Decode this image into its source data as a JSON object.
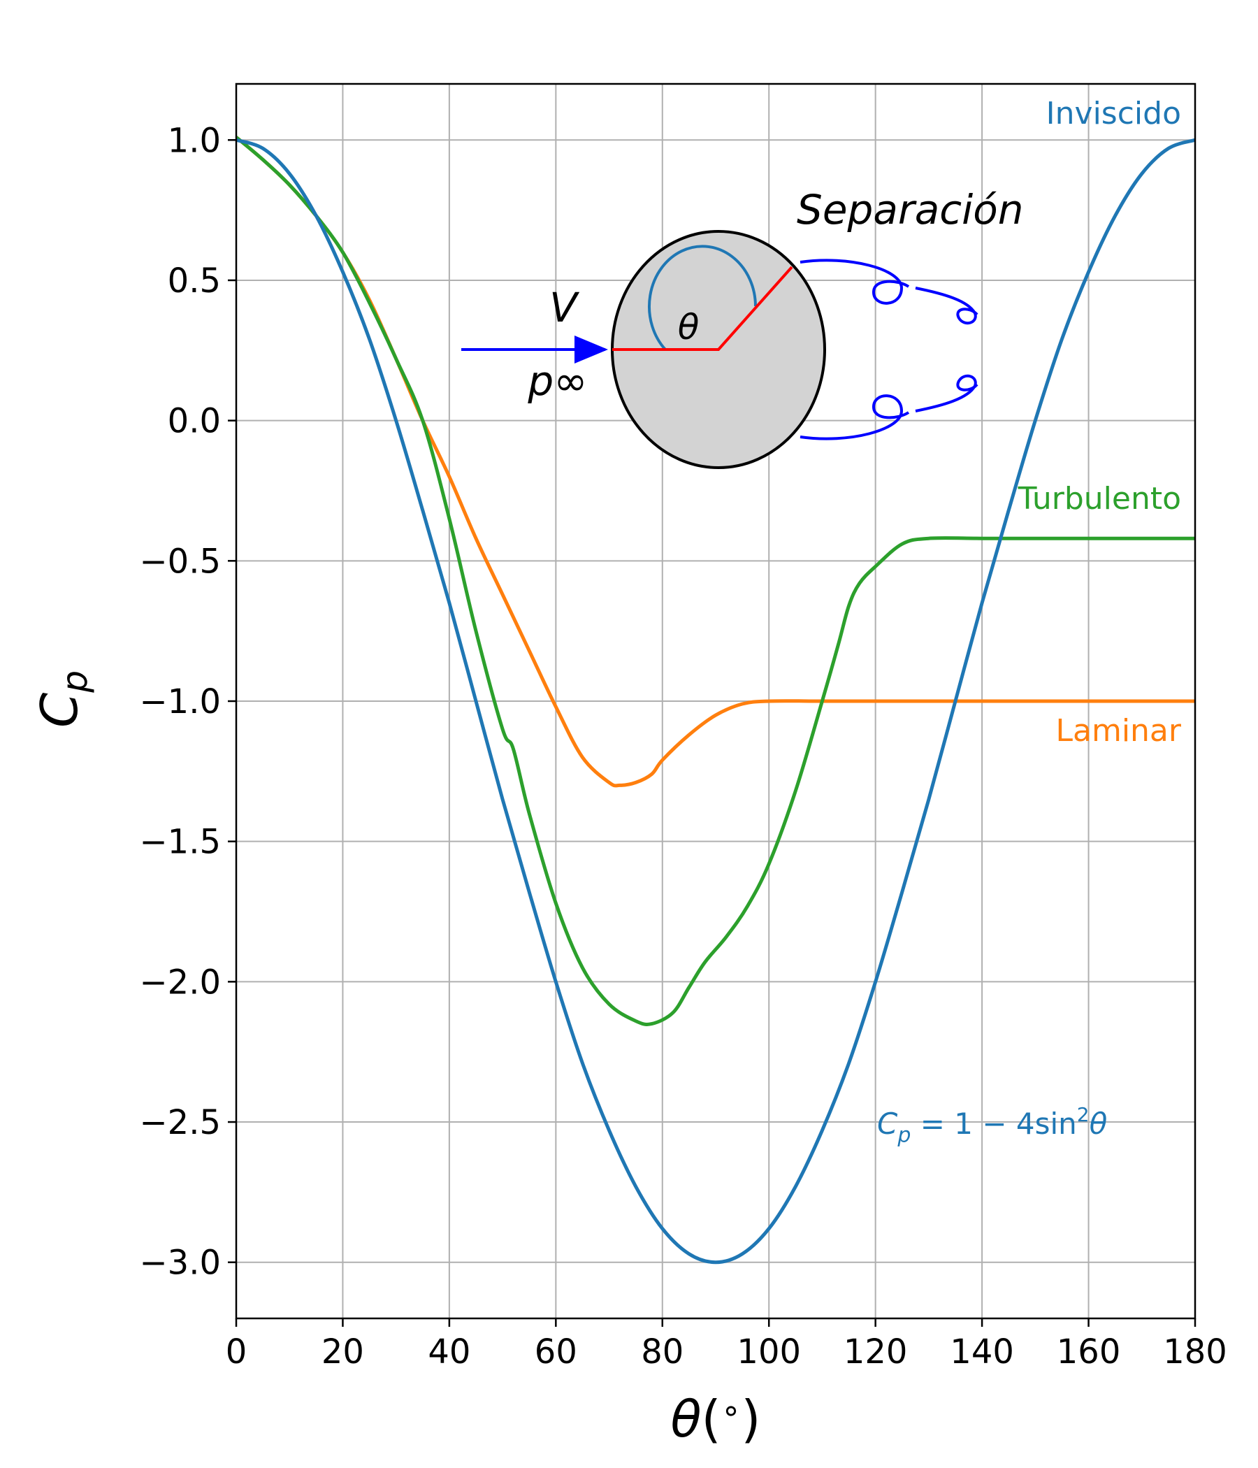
{
  "chart_data": {
    "type": "line",
    "xlabel": "θ(°)",
    "ylabel": "Cp",
    "xlim": [
      0,
      180
    ],
    "ylim": [
      -3.2,
      1.2
    ],
    "grid": true,
    "x_ticks": [
      0,
      20,
      40,
      60,
      80,
      100,
      120,
      140,
      160,
      180
    ],
    "y_ticks": [
      1.0,
      0.5,
      0.0,
      -0.5,
      -1.0,
      -1.5,
      -2.0,
      -2.5,
      -3.0
    ],
    "x_tick_labels": [
      "0",
      "20",
      "40",
      "60",
      "80",
      "100",
      "120",
      "140",
      "160",
      "180"
    ],
    "y_tick_labels": [
      "1.0",
      "0.5",
      "0.0",
      "−0.5",
      "−1.0",
      "−1.5",
      "−2.0",
      "−2.5",
      "−3.0"
    ],
    "series": [
      {
        "name": "Inviscido",
        "color": "#1f77b4",
        "formula": "Cp = 1 − 4sin²θ",
        "x": [
          0,
          5,
          10,
          15,
          20,
          25,
          30,
          35,
          40,
          45,
          50,
          55,
          60,
          65,
          70,
          75,
          80,
          85,
          90,
          95,
          100,
          105,
          110,
          115,
          120,
          125,
          130,
          135,
          140,
          145,
          150,
          155,
          160,
          165,
          170,
          175,
          180
        ],
        "y": [
          1.0,
          0.97,
          0.88,
          0.73,
          0.53,
          0.29,
          0.0,
          -0.32,
          -0.65,
          -1.0,
          -1.35,
          -1.68,
          -2.0,
          -2.29,
          -2.53,
          -2.73,
          -2.88,
          -2.97,
          -3.0,
          -2.97,
          -2.88,
          -2.73,
          -2.53,
          -2.29,
          -2.0,
          -1.68,
          -1.35,
          -1.0,
          -0.65,
          -0.32,
          0.0,
          0.29,
          0.53,
          0.73,
          0.88,
          0.97,
          1.0
        ]
      },
      {
        "name": "Turbulento",
        "color": "#2ca02c",
        "x": [
          0,
          5,
          10,
          15,
          20,
          25,
          30,
          35,
          40,
          45,
          50,
          52,
          55,
          60,
          65,
          70,
          75,
          78,
          82,
          85,
          88,
          92,
          96,
          100,
          105,
          110,
          113,
          115,
          117,
          120,
          125,
          130,
          140,
          150,
          160,
          170,
          180
        ],
        "y": [
          1.01,
          0.93,
          0.84,
          0.73,
          0.6,
          0.42,
          0.22,
          0.0,
          -0.35,
          -0.75,
          -1.1,
          -1.17,
          -1.4,
          -1.72,
          -1.95,
          -2.08,
          -2.14,
          -2.15,
          -2.11,
          -2.02,
          -1.93,
          -1.84,
          -1.73,
          -1.58,
          -1.32,
          -1.0,
          -0.8,
          -0.66,
          -0.58,
          -0.52,
          -0.44,
          -0.42,
          -0.42,
          -0.42,
          -0.42,
          -0.42,
          -0.42
        ]
      },
      {
        "name": "Laminar",
        "color": "#ff7f0e",
        "x": [
          0,
          5,
          10,
          15,
          20,
          25,
          30,
          35,
          40,
          45,
          50,
          55,
          60,
          65,
          70,
          72,
          75,
          78,
          80,
          85,
          90,
          95,
          100,
          110,
          120,
          130,
          140,
          150,
          160,
          170,
          180
        ],
        "y": [
          1.01,
          0.93,
          0.84,
          0.73,
          0.6,
          0.43,
          0.22,
          0.0,
          -0.2,
          -0.42,
          -0.62,
          -0.82,
          -1.02,
          -1.2,
          -1.29,
          -1.3,
          -1.29,
          -1.26,
          -1.21,
          -1.12,
          -1.05,
          -1.01,
          -1.0,
          -1.0,
          -1.0,
          -1.0,
          -1.0,
          -1.0,
          -1.0,
          -1.0,
          -1.0
        ]
      }
    ],
    "annotations": {
      "separation": "Separación",
      "velocity": "V",
      "pressure": "p∞",
      "angle": "θ"
    }
  },
  "legend": {
    "inviscid": "Inviscido",
    "turbulent": "Turbulento",
    "laminar": "Laminar",
    "formula": "Cp = 1 − 4sin²θ"
  }
}
